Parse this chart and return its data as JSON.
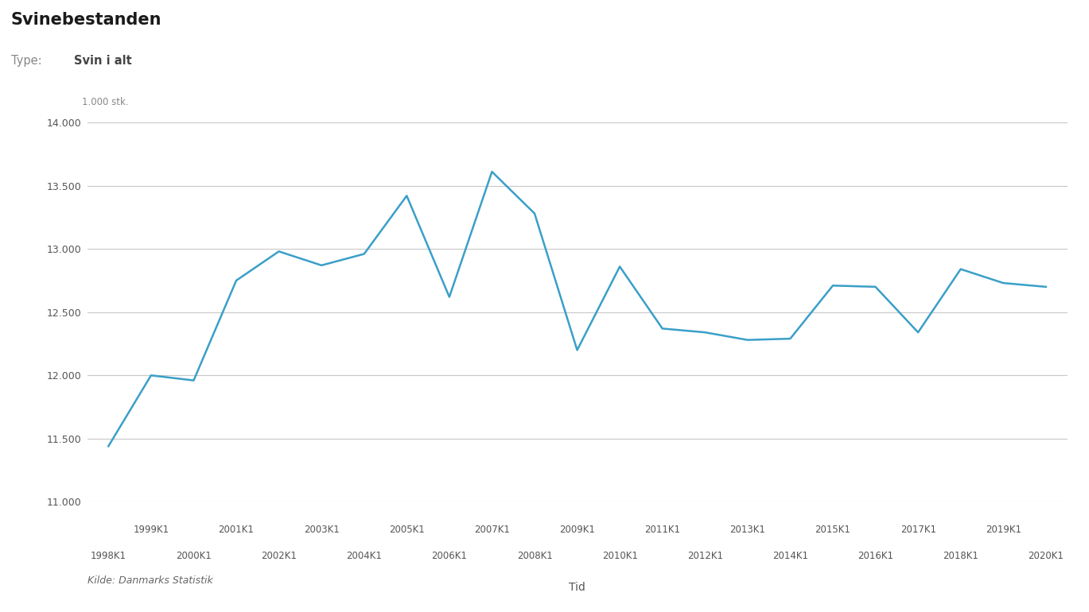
{
  "title": "Svinebestanden",
  "subtitle_label": "Type:",
  "subtitle_value": "Svin i alt",
  "ylabel": "1.000 stk.",
  "xlabel": "Tid",
  "source": "Kilde: Danmarks Statistik",
  "line_color": "#3a9fc8",
  "line_width": 1.8,
  "background_color": "#ffffff",
  "grid_color": "#c8c8c8",
  "ylim": [
    11000,
    14000
  ],
  "yticks": [
    11000,
    11500,
    12000,
    12500,
    13000,
    13500,
    14000
  ],
  "data": [
    {
      "label": "1998K1",
      "value": 11440
    },
    {
      "label": "1999K1",
      "value": 12000
    },
    {
      "label": "2000K1",
      "value": 11960
    },
    {
      "label": "2001K1",
      "value": 12750
    },
    {
      "label": "2002K1",
      "value": 12980
    },
    {
      "label": "2003K1",
      "value": 12870
    },
    {
      "label": "2004K1",
      "value": 12960
    },
    {
      "label": "2005K1",
      "value": 13420
    },
    {
      "label": "2006K1",
      "value": 12620
    },
    {
      "label": "2007K1",
      "value": 13610
    },
    {
      "label": "2008K1",
      "value": 13280
    },
    {
      "label": "2009K1",
      "value": 12200
    },
    {
      "label": "2010K1",
      "value": 12860
    },
    {
      "label": "2011K1",
      "value": 12370
    },
    {
      "label": "2012K1",
      "value": 12340
    },
    {
      "label": "2013K1",
      "value": 12280
    },
    {
      "label": "2014K1",
      "value": 12290
    },
    {
      "label": "2015K1",
      "value": 12710
    },
    {
      "label": "2016K1",
      "value": 12700
    },
    {
      "label": "2017K1",
      "value": 12340
    },
    {
      "label": "2018K1",
      "value": 12840
    },
    {
      "label": "2019K1",
      "value": 12730
    },
    {
      "label": "2020K1",
      "value": 12700
    }
  ],
  "x_ticks_row1": [
    "1999K1",
    "2001K1",
    "2003K1",
    "2005K1",
    "2007K1",
    "2009K1",
    "2011K1",
    "2013K1",
    "2015K1",
    "2017K1",
    "2019K1"
  ],
  "x_ticks_row2": [
    "1998K1",
    "2000K1",
    "2002K1",
    "2004K1",
    "2006K1",
    "2008K1",
    "2010K1",
    "2012K1",
    "2014K1",
    "2016K1",
    "2018K1",
    "2020K1"
  ]
}
